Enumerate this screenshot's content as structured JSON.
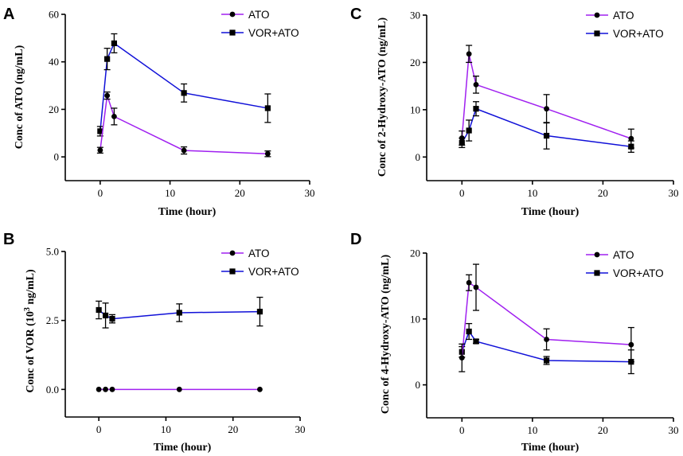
{
  "colors": {
    "ato": "#A020F0",
    "vor_ato": "#1010D8",
    "axis": "#000000"
  },
  "markers": {
    "ato": "circle",
    "vor_ato": "square"
  },
  "chart_data": [
    {
      "panel": "A",
      "type": "line",
      "xlabel": "Time (hour)",
      "ylabel": "Conc of ATO (ng/mL)",
      "xlim": [
        -5,
        30
      ],
      "xticks": [
        0,
        10,
        20,
        30
      ],
      "ylim": [
        -10,
        60
      ],
      "yticks": [
        0,
        20,
        40,
        60
      ],
      "ytick_labels": [
        "0",
        "20",
        "40",
        "60"
      ],
      "legend_position": "top-right",
      "x": [
        0,
        1,
        2,
        12,
        24
      ],
      "series": [
        {
          "name": "ATO",
          "values": [
            2.8,
            25.8,
            17.0,
            2.7,
            1.3
          ],
          "errors": [
            1.2,
            1.5,
            3.5,
            1.5,
            1.2
          ]
        },
        {
          "name": "VOR+ATO",
          "values": [
            10.8,
            41.2,
            47.8,
            26.9,
            20.5
          ],
          "errors": [
            2.0,
            4.5,
            4.0,
            3.8,
            6.0
          ]
        }
      ]
    },
    {
      "panel": "C",
      "type": "line",
      "xlabel": "Time (hour)",
      "ylabel": "Conc of 2-Hydroxy-ATO (ng/mL)",
      "xlim": [
        -5,
        30
      ],
      "xticks": [
        0,
        10,
        20,
        30
      ],
      "ylim": [
        -5,
        30
      ],
      "yticks": [
        0,
        10,
        20,
        30
      ],
      "ytick_labels": [
        "0",
        "10",
        "20",
        "30"
      ],
      "legend_position": "top-right",
      "x": [
        0,
        1,
        2,
        12,
        24
      ],
      "series": [
        {
          "name": "ATO",
          "values": [
            4.0,
            21.8,
            15.3,
            10.2,
            3.9
          ],
          "errors": [
            1.5,
            1.8,
            1.8,
            3.0,
            2.0
          ]
        },
        {
          "name": "VOR+ATO",
          "values": [
            3.0,
            5.6,
            10.2,
            4.5,
            2.2
          ],
          "errors": [
            1.0,
            2.2,
            1.5,
            2.8,
            1.2
          ]
        }
      ]
    },
    {
      "panel": "B",
      "type": "line",
      "xlabel": "Time (hour)",
      "ylabel": "Conc of VOR (10³ ng/mL)",
      "ylabel_base": "Conc of VOR (10",
      "ylabel_sup": "3",
      "ylabel_tail": " ng/mL)",
      "xlim": [
        -5,
        30
      ],
      "xticks": [
        0,
        10,
        20,
        30
      ],
      "ylim": [
        -1.0,
        5.0
      ],
      "yticks": [
        0,
        2.5,
        5.0
      ],
      "ytick_labels": [
        "0.0",
        "2.5",
        "5.0"
      ],
      "legend_position": "top-right",
      "x": [
        0,
        1,
        2,
        12,
        24
      ],
      "series": [
        {
          "name": "ATO",
          "values": [
            0,
            0,
            0,
            0,
            0
          ],
          "errors": [
            0,
            0,
            0,
            0,
            0
          ]
        },
        {
          "name": "VOR+ATO",
          "values": [
            2.88,
            2.68,
            2.56,
            2.78,
            2.82
          ],
          "errors": [
            0.32,
            0.45,
            0.15,
            0.32,
            0.52
          ]
        }
      ]
    },
    {
      "panel": "D",
      "type": "line",
      "xlabel": "Time (hour)",
      "ylabel": "Conc of 4-Hydroxy-ATO (ng/mL)",
      "xlim": [
        -5,
        30
      ],
      "xticks": [
        0,
        10,
        20,
        30
      ],
      "ylim": [
        -5,
        20
      ],
      "yticks": [
        0,
        10,
        20
      ],
      "ytick_labels": [
        "0",
        "10",
        "20"
      ],
      "legend_position": "top-right",
      "x": [
        0,
        1,
        2,
        12,
        24
      ],
      "series": [
        {
          "name": "ATO",
          "values": [
            4.1,
            15.5,
            14.8,
            6.9,
            6.1
          ],
          "errors": [
            2.1,
            1.2,
            3.5,
            1.6,
            2.6
          ]
        },
        {
          "name": "VOR+ATO",
          "values": [
            5.0,
            8.1,
            6.6,
            3.7,
            3.5
          ],
          "errors": [
            0.8,
            1.2,
            0.3,
            0.6,
            1.8
          ]
        }
      ]
    }
  ]
}
